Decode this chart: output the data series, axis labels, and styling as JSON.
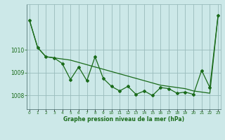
{
  "x": [
    0,
    1,
    2,
    3,
    4,
    5,
    6,
    7,
    8,
    9,
    10,
    11,
    12,
    13,
    14,
    15,
    16,
    17,
    18,
    19,
    20,
    21,
    22,
    23
  ],
  "y_main": [
    1011.3,
    1010.1,
    1009.7,
    1009.65,
    1009.4,
    1008.7,
    1009.25,
    1008.65,
    1009.7,
    1008.75,
    1008.4,
    1008.2,
    1008.4,
    1008.05,
    1008.2,
    1008.0,
    1008.35,
    1008.3,
    1008.1,
    1008.15,
    1008.05,
    1009.1,
    1008.35,
    1011.5
  ],
  "y_trend": [
    1011.3,
    1010.1,
    1009.7,
    1009.65,
    1009.6,
    1009.55,
    1009.45,
    1009.35,
    1009.25,
    1009.15,
    1009.05,
    1008.95,
    1008.85,
    1008.75,
    1008.65,
    1008.55,
    1008.45,
    1008.4,
    1008.35,
    1008.3,
    1008.2,
    1008.15,
    1008.1,
    1011.5
  ],
  "bg_color": "#cce8e8",
  "line_color": "#1a6b1a",
  "grid_color": "#99bbbb",
  "text_color": "#1a6b1a",
  "xlabel": "Graphe pression niveau de la mer (hPa)",
  "ylim_min": 1007.4,
  "ylim_max": 1012.0,
  "yticks": [
    1008,
    1009,
    1010
  ],
  "xticks": [
    0,
    1,
    2,
    3,
    4,
    5,
    6,
    7,
    8,
    9,
    10,
    11,
    12,
    13,
    14,
    15,
    16,
    17,
    18,
    19,
    20,
    21,
    22,
    23
  ]
}
